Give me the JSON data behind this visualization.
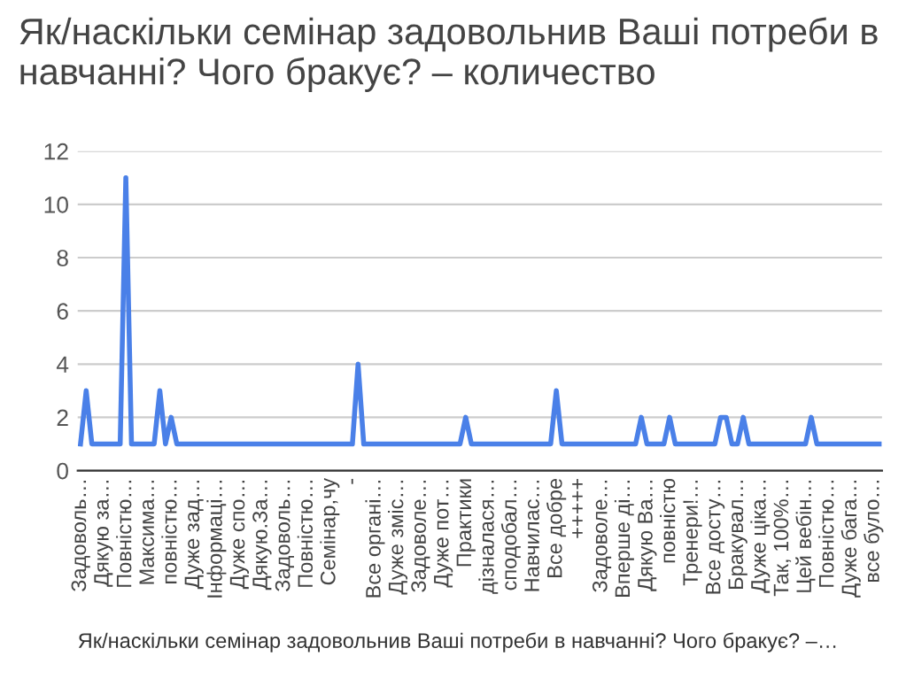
{
  "chart_data": {
    "type": "line",
    "title": "Як/наскільки семінар задовольнив Ваші потреби в навчанні? Чого бракує? – количество",
    "xlabel": "Як/наскільки семінар задовольнив Ваші потреби в навчанні? Чого бракує? –…",
    "categories": [
      "Задоволь…",
      null,
      null,
      null,
      "Дякую за…",
      null,
      null,
      null,
      "Повністю…",
      null,
      null,
      null,
      "Максима…",
      null,
      null,
      null,
      "повністю…",
      null,
      null,
      null,
      "Дуже зад…",
      null,
      null,
      null,
      "Інформаці…",
      null,
      null,
      null,
      "Дуже спо…",
      null,
      null,
      null,
      "Дякую.За…",
      null,
      null,
      null,
      "Задоволь…",
      null,
      null,
      null,
      "Повністю…",
      null,
      null,
      null,
      "Семінар,чу",
      null,
      null,
      null,
      "-",
      null,
      null,
      null,
      "Все органі…",
      null,
      null,
      null,
      "Дуже зміс…",
      null,
      null,
      null,
      "Задоволе…",
      null,
      null,
      null,
      "Дуже пот…",
      null,
      null,
      null,
      "Практики",
      null,
      null,
      null,
      "дізналася…",
      null,
      null,
      null,
      "сподобал…",
      null,
      null,
      null,
      "Навчилас…",
      null,
      null,
      null,
      "Все добре",
      null,
      null,
      null,
      "+++++",
      null,
      null,
      null,
      "Задоволе…",
      null,
      null,
      null,
      "Вперше ді…",
      null,
      null,
      null,
      "Дякую Ва…",
      null,
      null,
      null,
      "повністю",
      null,
      null,
      null,
      "Тренери!…",
      null,
      null,
      null,
      "Все досту…",
      null,
      null,
      null,
      "Бракувал…",
      null,
      null,
      null,
      "Дуже цікa…",
      null,
      null,
      null,
      "Так, 100%…",
      null,
      null,
      null,
      "Цей вебін…",
      null,
      null,
      null,
      "Повністю…",
      null,
      null,
      null,
      "Дуже бага…",
      null,
      null,
      null,
      "все було…",
      null
    ],
    "series": [
      {
        "color": "#4a80e8",
        "values": [
          1,
          3,
          1,
          1,
          1,
          1,
          1,
          1,
          11,
          1,
          1,
          1,
          1,
          1,
          3,
          1,
          2,
          1,
          1,
          1,
          1,
          1,
          1,
          1,
          1,
          1,
          1,
          1,
          1,
          1,
          1,
          1,
          1,
          1,
          1,
          1,
          1,
          1,
          1,
          1,
          1,
          1,
          1,
          1,
          1,
          1,
          1,
          1,
          1,
          4,
          1,
          1,
          1,
          1,
          1,
          1,
          1,
          1,
          1,
          1,
          1,
          1,
          1,
          1,
          1,
          1,
          1,
          1,
          2,
          1,
          1,
          1,
          1,
          1,
          1,
          1,
          1,
          1,
          1,
          1,
          1,
          1,
          1,
          1,
          3,
          1,
          1,
          1,
          1,
          1,
          1,
          1,
          1,
          1,
          1,
          1,
          1,
          1,
          1,
          2,
          1,
          1,
          1,
          1,
          2,
          1,
          1,
          1,
          1,
          1,
          1,
          1,
          1,
          2,
          2,
          1,
          1,
          2,
          1,
          1,
          1,
          1,
          1,
          1,
          1,
          1,
          1,
          1,
          1,
          2,
          1,
          1,
          1,
          1,
          1,
          1,
          1,
          1,
          1,
          1,
          1,
          1
        ]
      }
    ],
    "ylim": [
      0,
      12
    ],
    "yticks": [
      0,
      2,
      4,
      6,
      8,
      10,
      12
    ],
    "grid": "y",
    "legend": false,
    "marker": "none",
    "line_style": "solid"
  }
}
